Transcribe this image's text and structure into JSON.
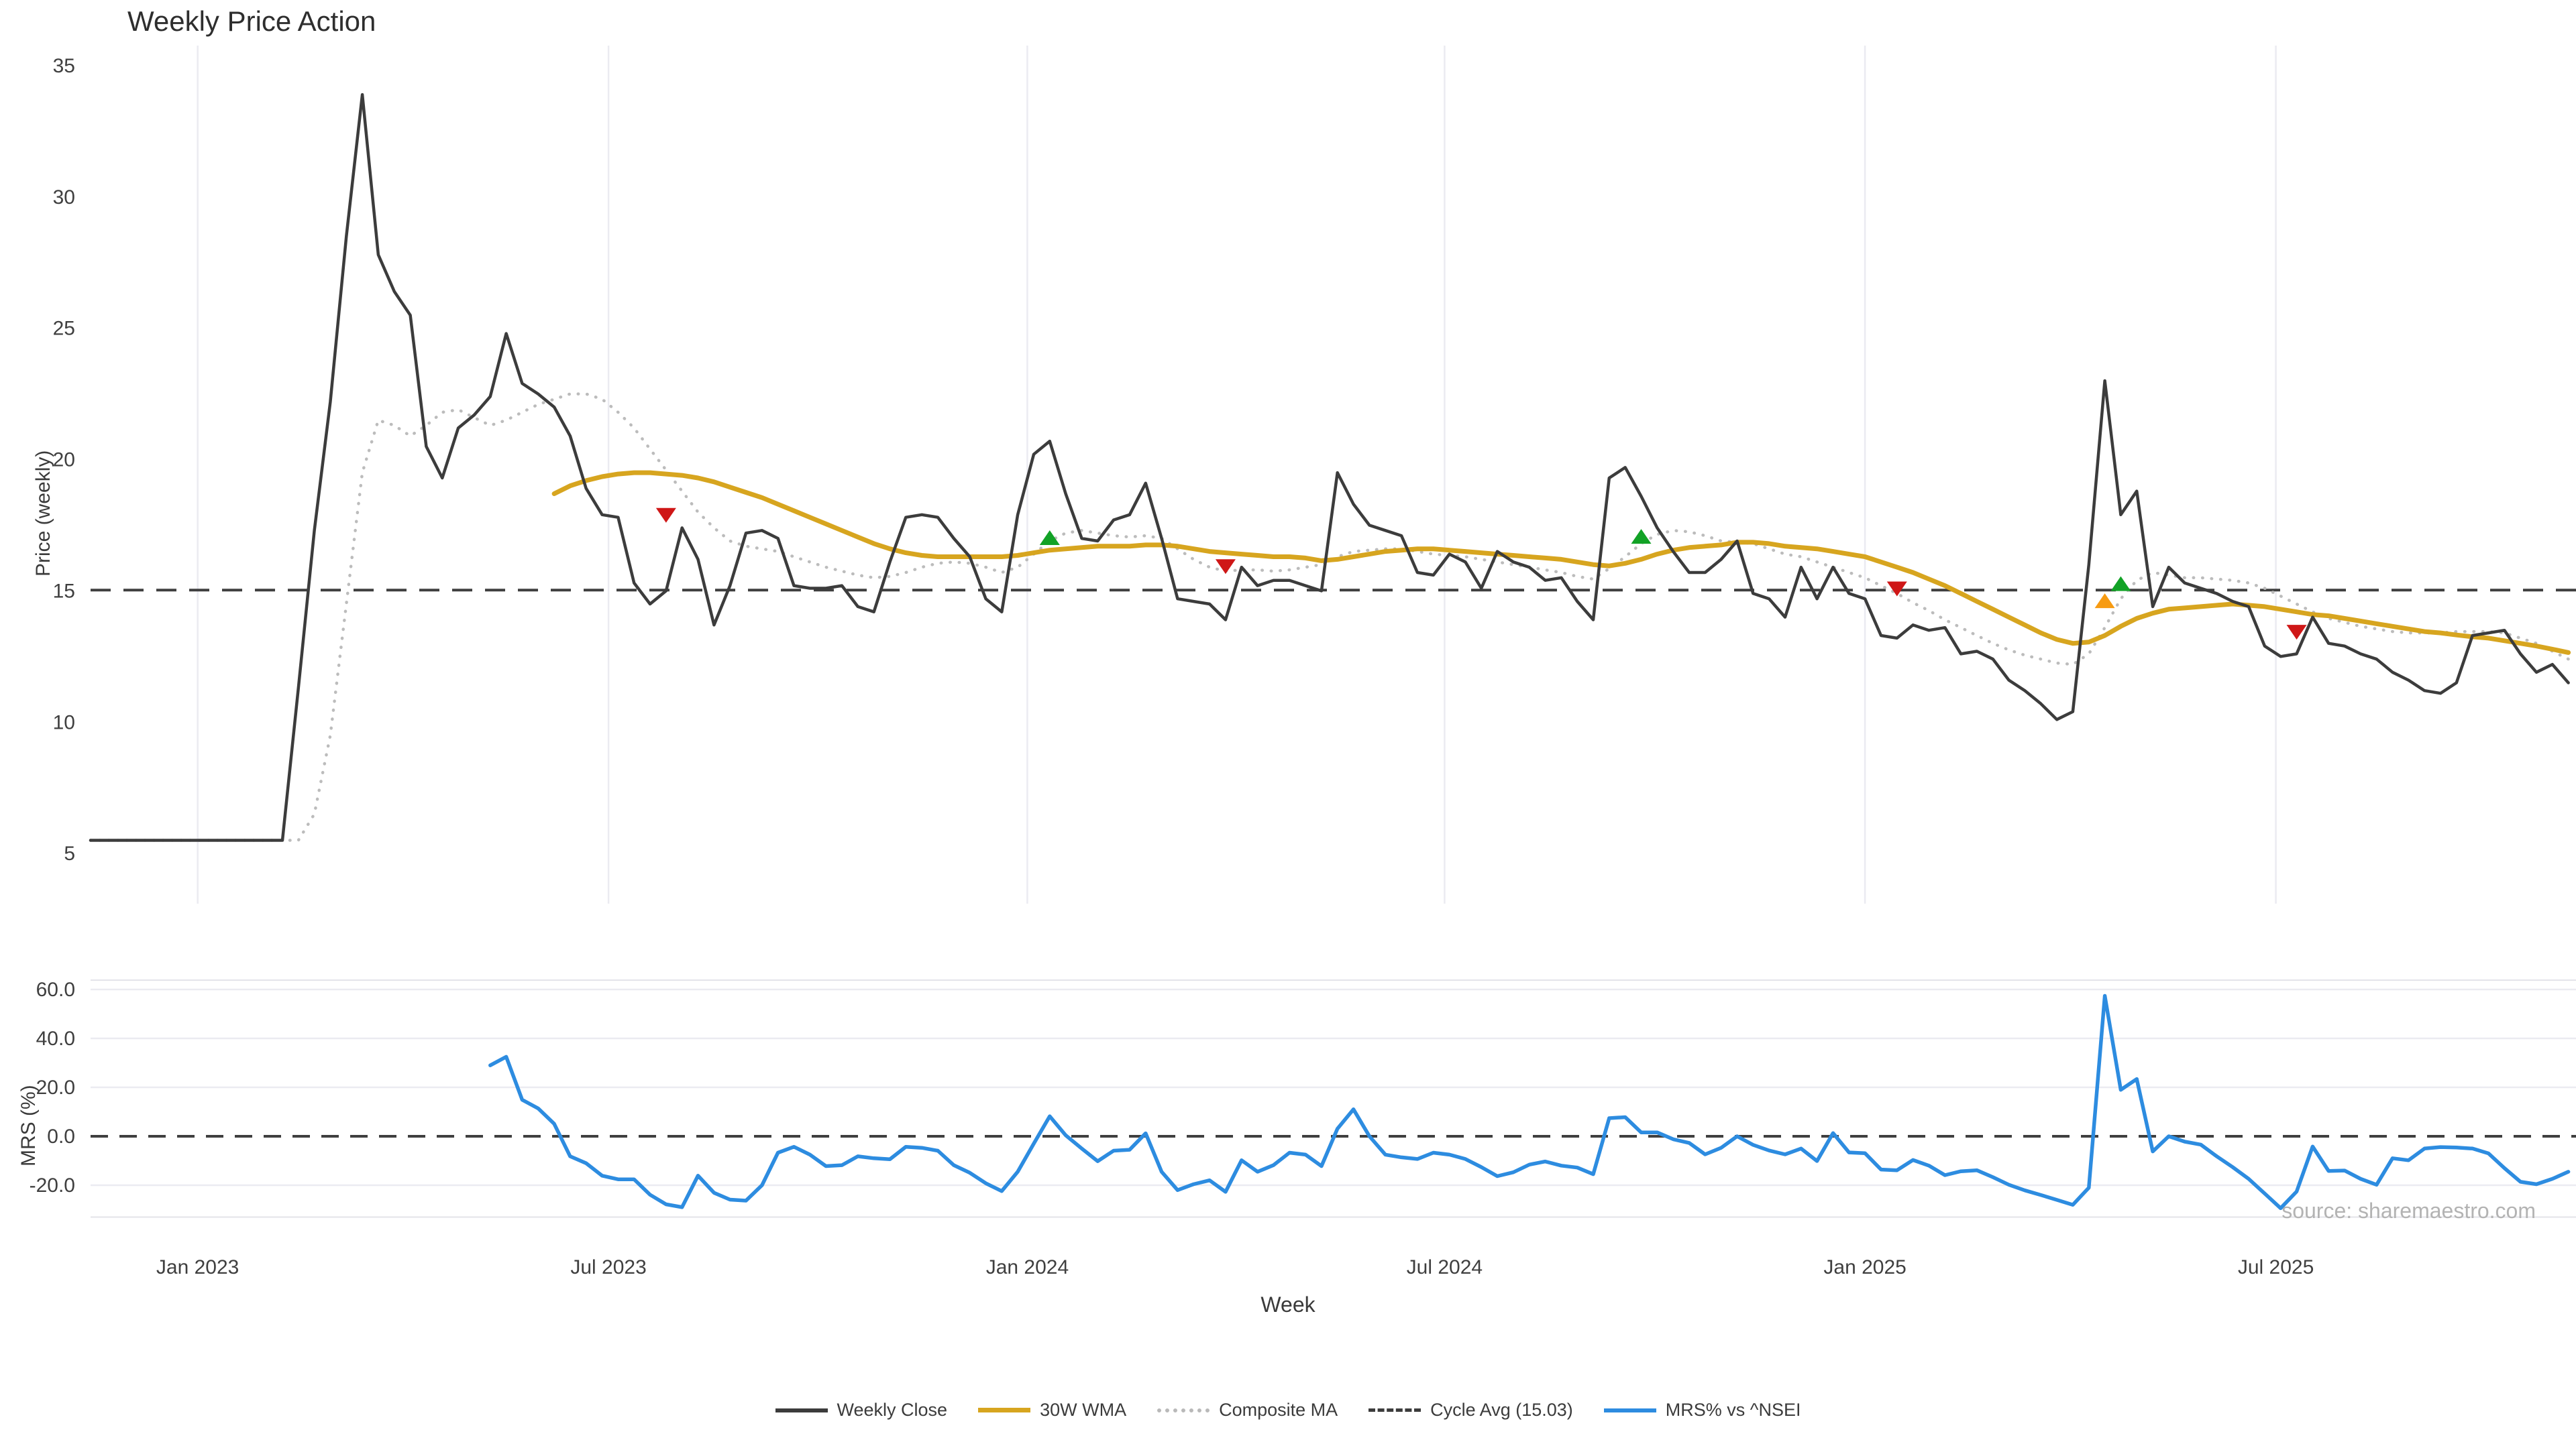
{
  "title": "Weekly Price Action",
  "xlabel": "Week",
  "source_note": "source: sharemaestro.com",
  "legend": {
    "items": [
      {
        "label": "Weekly Close",
        "style": "solid-dark",
        "color": "#3c3c3c"
      },
      {
        "label": "30W WMA",
        "style": "solid-gold",
        "color": "#d7a51f"
      },
      {
        "label": "Composite MA",
        "style": "dot",
        "color": "#b9b9b9"
      },
      {
        "label": "Cycle Avg (15.03)",
        "style": "dash",
        "color": "#3c3c3c"
      },
      {
        "label": "MRS% vs ^NSEI",
        "style": "solid-blue",
        "color": "#2d8ce0"
      }
    ]
  },
  "colors": {
    "close": "#3c3c3c",
    "wma": "#d7a51f",
    "composite": "#bcbcbc",
    "cycle": "#3f3f3f",
    "mrs": "#2d8ce0",
    "grid": "#ebebf1",
    "buy": "#12a226",
    "sell": "#cf1717",
    "accum": "#f79b12",
    "tick_text": "#3f3f3f"
  },
  "chart_data": [
    {
      "type": "line",
      "panel": "price",
      "ylabel": "Price (weekly)",
      "ylim": [
        4.2,
        35.8
      ],
      "yticks": [
        35,
        30,
        25,
        20,
        15,
        10,
        5
      ],
      "ytick_labels": [
        "35",
        "30",
        "25",
        "20",
        "15",
        "10",
        "5"
      ],
      "grid": "vertical-only",
      "cycle_avg": 15.03,
      "weeks_total": 156,
      "xticks": [
        {
          "week": 6.7,
          "label": "Jan 2023"
        },
        {
          "week": 32.4,
          "label": "Jul 2023"
        },
        {
          "week": 58.6,
          "label": "Jan 2024"
        },
        {
          "week": 84.7,
          "label": "Jul 2024"
        },
        {
          "week": 111.0,
          "label": "Jan 2025"
        },
        {
          "week": 136.7,
          "label": "Jul 2025"
        }
      ],
      "series": [
        {
          "name": "Composite MA",
          "start_week": 0,
          "values": [
            5.5,
            5.5,
            5.5,
            5.5,
            5.5,
            5.5,
            5.5,
            5.5,
            5.5,
            5.5,
            5.5,
            5.5,
            5.5,
            5.5,
            6.5,
            9.5,
            14.5,
            19.5,
            21.5,
            21.3,
            20.9,
            21.3,
            21.8,
            21.9,
            21.6,
            21.3,
            21.5,
            21.8,
            22.1,
            22.3,
            22.5,
            22.5,
            22.3,
            21.8,
            21.2,
            20.4,
            19.6,
            18.8,
            18.0,
            17.4,
            16.9,
            16.7,
            16.6,
            16.5,
            16.3,
            16.1,
            15.9,
            15.75,
            15.6,
            15.5,
            15.55,
            15.7,
            15.9,
            16.05,
            16.1,
            16.05,
            15.9,
            15.7,
            15.9,
            16.4,
            16.9,
            17.2,
            17.3,
            17.2,
            17.1,
            17.05,
            17.1,
            17.0,
            16.6,
            16.2,
            15.9,
            15.75,
            15.8,
            15.8,
            15.75,
            15.8,
            15.9,
            16.0,
            16.3,
            16.5,
            16.55,
            16.6,
            16.6,
            16.5,
            16.4,
            16.35,
            16.3,
            16.2,
            16.1,
            16.0,
            15.9,
            15.8,
            15.7,
            15.55,
            15.45,
            15.85,
            16.3,
            16.8,
            17.15,
            17.3,
            17.25,
            17.1,
            16.9,
            16.85,
            16.8,
            16.6,
            16.4,
            16.3,
            16.1,
            15.9,
            15.7,
            15.5,
            15.2,
            14.9,
            14.55,
            14.25,
            13.9,
            13.6,
            13.3,
            13.0,
            12.75,
            12.55,
            12.4,
            12.25,
            12.2,
            12.6,
            13.6,
            14.7,
            15.4,
            15.7,
            15.6,
            15.5,
            15.5,
            15.45,
            15.4,
            15.3,
            15.1,
            14.8,
            14.5,
            14.2,
            13.95,
            13.8,
            13.65,
            13.55,
            13.45,
            13.4,
            13.4,
            13.4,
            13.45,
            13.45,
            13.45,
            13.4,
            13.2,
            13.0,
            12.7,
            12.4
          ]
        },
        {
          "name": "30W WMA",
          "start_week": 29,
          "values": [
            18.7,
            19.0,
            19.2,
            19.35,
            19.45,
            19.5,
            19.5,
            19.45,
            19.4,
            19.3,
            19.15,
            18.95,
            18.75,
            18.55,
            18.3,
            18.05,
            17.8,
            17.55,
            17.3,
            17.05,
            16.8,
            16.6,
            16.45,
            16.35,
            16.3,
            16.3,
            16.3,
            16.3,
            16.3,
            16.35,
            16.45,
            16.55,
            16.6,
            16.65,
            16.7,
            16.7,
            16.7,
            16.75,
            16.75,
            16.7,
            16.6,
            16.5,
            16.45,
            16.4,
            16.35,
            16.3,
            16.3,
            16.25,
            16.15,
            16.2,
            16.3,
            16.4,
            16.5,
            16.55,
            16.6,
            16.6,
            16.55,
            16.5,
            16.45,
            16.4,
            16.35,
            16.3,
            16.25,
            16.2,
            16.1,
            16.0,
            15.95,
            16.05,
            16.2,
            16.4,
            16.55,
            16.65,
            16.7,
            16.75,
            16.85,
            16.85,
            16.8,
            16.7,
            16.65,
            16.6,
            16.5,
            16.4,
            16.3,
            16.1,
            15.9,
            15.7,
            15.45,
            15.2,
            14.9,
            14.6,
            14.3,
            14.0,
            13.7,
            13.4,
            13.15,
            13.0,
            13.05,
            13.3,
            13.65,
            13.95,
            14.15,
            14.3,
            14.35,
            14.4,
            14.45,
            14.5,
            14.45,
            14.4,
            14.3,
            14.2,
            14.1,
            14.05,
            13.95,
            13.85,
            13.75,
            13.65,
            13.55,
            13.45,
            13.4,
            13.32,
            13.25,
            13.2,
            13.1,
            13.0,
            12.9,
            12.78,
            12.65
          ]
        },
        {
          "name": "Weekly Close",
          "start_week": 0,
          "values": [
            5.5,
            5.5,
            5.5,
            5.5,
            5.5,
            5.5,
            5.5,
            5.5,
            5.5,
            5.5,
            5.5,
            5.5,
            5.5,
            11.3,
            17.3,
            22.2,
            28.5,
            33.9,
            27.8,
            26.4,
            25.5,
            20.5,
            19.3,
            21.2,
            21.7,
            22.4,
            24.8,
            22.9,
            22.5,
            22.0,
            20.9,
            18.9,
            17.9,
            17.8,
            15.3,
            14.5,
            15.0,
            17.4,
            16.2,
            13.7,
            15.2,
            17.2,
            17.3,
            17.0,
            15.2,
            15.1,
            15.1,
            15.2,
            14.4,
            14.2,
            16.1,
            17.8,
            17.9,
            17.8,
            17.0,
            16.3,
            14.7,
            14.2,
            17.9,
            20.2,
            20.7,
            18.7,
            17.0,
            16.9,
            17.7,
            17.9,
            19.1,
            17.0,
            14.7,
            14.6,
            14.5,
            13.9,
            15.9,
            15.2,
            15.4,
            15.4,
            15.2,
            15.0,
            19.5,
            18.3,
            17.5,
            17.3,
            17.1,
            15.7,
            15.6,
            16.4,
            16.1,
            15.1,
            16.5,
            16.1,
            15.9,
            15.4,
            15.5,
            14.6,
            13.9,
            19.3,
            19.7,
            18.6,
            17.4,
            16.5,
            15.7,
            15.7,
            16.2,
            16.9,
            14.9,
            14.7,
            14.0,
            15.9,
            14.7,
            15.9,
            14.9,
            14.7,
            13.3,
            13.2,
            13.7,
            13.5,
            13.6,
            12.6,
            12.7,
            12.4,
            11.6,
            11.2,
            10.7,
            10.1,
            10.4,
            16.0,
            23.0,
            17.9,
            18.8,
            14.4,
            15.9,
            15.3,
            15.1,
            14.9,
            14.6,
            14.4,
            12.9,
            12.5,
            12.6,
            14.0,
            13.0,
            12.9,
            12.6,
            12.4,
            11.9,
            11.6,
            11.2,
            11.1,
            11.5,
            13.3,
            13.4,
            13.5,
            12.6,
            11.9,
            12.2,
            11.5
          ]
        }
      ],
      "markers": [
        {
          "week": 36,
          "value": 17.9,
          "signal": "sell",
          "shape": "triangle-down",
          "color": "#cf1717"
        },
        {
          "week": 60,
          "value": 17.0,
          "signal": "buy",
          "shape": "triangle-up",
          "color": "#12a226"
        },
        {
          "week": 71,
          "value": 15.95,
          "signal": "sell",
          "shape": "triangle-down",
          "color": "#cf1717"
        },
        {
          "week": 97,
          "value": 17.05,
          "signal": "buy",
          "shape": "triangle-up",
          "color": "#12a226"
        },
        {
          "week": 113,
          "value": 15.1,
          "signal": "sell",
          "shape": "triangle-down",
          "color": "#cf1717"
        },
        {
          "week": 126,
          "value": 14.6,
          "signal": "accumulate",
          "shape": "triangle-up",
          "color": "#f79b12"
        },
        {
          "week": 127,
          "value": 15.25,
          "signal": "buy",
          "shape": "triangle-up",
          "color": "#12a226"
        },
        {
          "week": 138,
          "value": 13.45,
          "signal": "sell",
          "shape": "triangle-down",
          "color": "#cf1717"
        }
      ]
    },
    {
      "type": "line",
      "panel": "mrs",
      "ylabel": "MRS (%)",
      "ylim": [
        -33,
        63.8
      ],
      "yticks": [
        60,
        40,
        20,
        0,
        -20
      ],
      "ytick_labels": [
        "60.0",
        "40.0",
        "20.0",
        "0.0",
        "-20.0"
      ],
      "grid": "horizontal-only",
      "zero_line": 0.0,
      "series": [
        {
          "name": "MRS% vs ^NSEI",
          "start_week": 25,
          "values": [
            29.0,
            32.5,
            14.9,
            11.4,
            5.1,
            -8.2,
            -11.0,
            -16.1,
            -17.6,
            -17.6,
            -23.9,
            -27.8,
            -29.0,
            -16.1,
            -23.1,
            -25.9,
            -26.3,
            -20.0,
            -6.7,
            -4.3,
            -7.5,
            -12.2,
            -11.8,
            -8.2,
            -9.0,
            -9.4,
            -4.3,
            -4.7,
            -5.9,
            -11.8,
            -14.9,
            -19.2,
            -22.4,
            -14.5,
            -3.0,
            8.2,
            0.4,
            -5.0,
            -10.2,
            -5.9,
            -5.5,
            1.2,
            -14.5,
            -22.0,
            -19.6,
            -18.0,
            -22.7,
            -9.8,
            -14.5,
            -11.8,
            -6.7,
            -7.5,
            -12.2,
            3.1,
            11.0,
            0.0,
            -7.5,
            -8.6,
            -9.3,
            -6.7,
            -7.5,
            -9.3,
            -12.6,
            -16.3,
            -14.7,
            -11.6,
            -10.3,
            -12.0,
            -12.8,
            -15.5,
            7.4,
            7.8,
            1.6,
            1.6,
            -1.2,
            -2.7,
            -7.4,
            -4.7,
            0.0,
            -3.5,
            -5.8,
            -7.4,
            -5.0,
            -10.1,
            1.3,
            -6.6,
            -6.9,
            -13.6,
            -13.9,
            -9.7,
            -12.0,
            -15.9,
            -14.3,
            -13.9,
            -16.7,
            -19.8,
            -22.1,
            -24.0,
            -26.0,
            -28.0,
            -21.0,
            57.4,
            19.0,
            23.4,
            -6.2,
            0.0,
            -2.2,
            -3.4,
            -8.2,
            -12.6,
            -17.4,
            -23.4,
            -29.4,
            -22.6,
            -4.2,
            -14.2,
            -14.0,
            -17.4,
            -19.8,
            -9.0,
            -9.8,
            -5.0,
            -4.4,
            -4.6,
            -5.0,
            -7.0,
            -13.0,
            -18.6,
            -19.6,
            -17.4,
            -14.5
          ]
        }
      ]
    }
  ]
}
